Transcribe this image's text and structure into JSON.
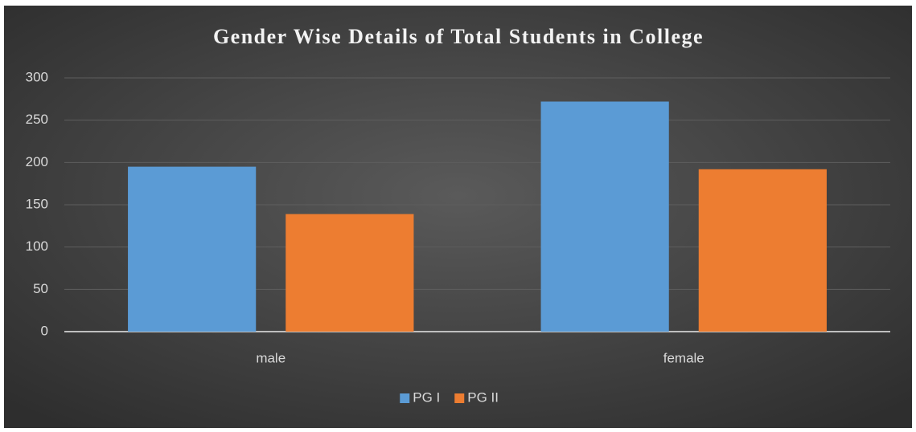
{
  "chart_data": {
    "type": "bar",
    "title": "Gender Wise Details of Total Students in College",
    "categories": [
      "male",
      "female"
    ],
    "series": [
      {
        "name": "PG I",
        "color": "#5b9bd5",
        "values": [
          195,
          272
        ]
      },
      {
        "name": "PG II",
        "color": "#ed7d31",
        "values": [
          139,
          192
        ]
      }
    ],
    "ylim": [
      0,
      300
    ],
    "yticks": [
      0,
      50,
      100,
      150,
      200,
      250,
      300
    ],
    "grid": true,
    "legend": "bottom"
  }
}
